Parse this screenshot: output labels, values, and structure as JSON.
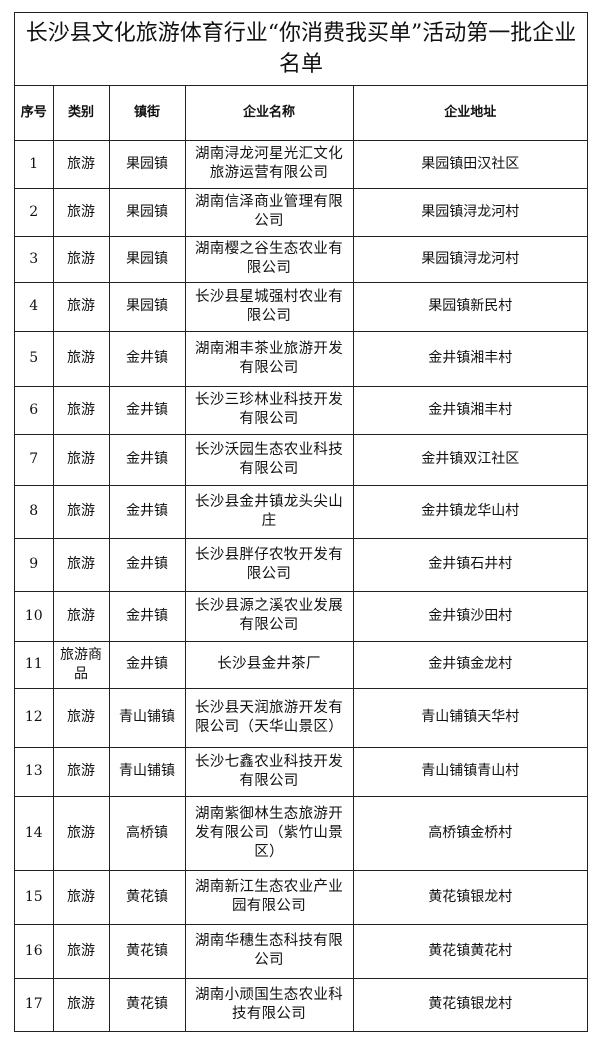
{
  "title": "长沙县文化旅游体育行业“你消费我买单”活动第一批企业名单",
  "columns": [
    "序号",
    "类别",
    "镇街",
    "企业名称",
    "企业地址"
  ],
  "rows": [
    {
      "no": "1",
      "category": "旅游",
      "town": "果园镇",
      "name": "湖南浔龙河星光汇文化旅游运营有限公司",
      "address": "果园镇田汉社区"
    },
    {
      "no": "2",
      "category": "旅游",
      "town": "果园镇",
      "name": "湖南信泽商业管理有限公司",
      "address": "果园镇浔龙河村"
    },
    {
      "no": "3",
      "category": "旅游",
      "town": "果园镇",
      "name": "湖南樱之谷生态农业有限公司",
      "address": "果园镇浔龙河村"
    },
    {
      "no": "4",
      "category": "旅游",
      "town": "果园镇",
      "name": "长沙县星城强村农业有限公司",
      "address": "果园镇新民村"
    },
    {
      "no": "5",
      "category": "旅游",
      "town": "金井镇",
      "name": "湖南湘丰茶业旅游开发有限公司",
      "address": "金井镇湘丰村"
    },
    {
      "no": "6",
      "category": "旅游",
      "town": "金井镇",
      "name": "长沙三珍林业科技开发有限公司",
      "address": "金井镇湘丰村"
    },
    {
      "no": "7",
      "category": "旅游",
      "town": "金井镇",
      "name": "长沙沃园生态农业科技有限公司",
      "address": "金井镇双江社区"
    },
    {
      "no": "8",
      "category": "旅游",
      "town": "金井镇",
      "name": "长沙县金井镇龙头尖山庄",
      "address": "金井镇龙华山村"
    },
    {
      "no": "9",
      "category": "旅游",
      "town": "金井镇",
      "name": "长沙县胖仔农牧开发有限公司",
      "address": "金井镇石井村"
    },
    {
      "no": "10",
      "category": "旅游",
      "town": "金井镇",
      "name": "长沙县源之溪农业发展有限公司",
      "address": "金井镇沙田村"
    },
    {
      "no": "11",
      "category": "旅游商品",
      "town": "金井镇",
      "name": "长沙县金井茶厂",
      "address": "金井镇金龙村"
    },
    {
      "no": "12",
      "category": "旅游",
      "town": "青山铺镇",
      "name": "长沙县天润旅游开发有限公司（天华山景区）",
      "address": "青山铺镇天华村"
    },
    {
      "no": "13",
      "category": "旅游",
      "town": "青山铺镇",
      "name": "长沙七鑫农业科技开发有限公司",
      "address": "青山铺镇青山村"
    },
    {
      "no": "14",
      "category": "旅游",
      "town": "高桥镇",
      "name": "湖南紫御林生态旅游开发有限公司（紫竹山景区）",
      "address": "高桥镇金桥村"
    },
    {
      "no": "15",
      "category": "旅游",
      "town": "黄花镇",
      "name": "湖南新江生态农业产业园有限公司",
      "address": "黄花镇银龙村"
    },
    {
      "no": "16",
      "category": "旅游",
      "town": "黄花镇",
      "name": "湖南华穗生态科技有限公司",
      "address": "黄花镇黄花村"
    },
    {
      "no": "17",
      "category": "旅游",
      "town": "黄花镇",
      "name": "湖南小顽国生态农业科技有限公司",
      "address": "黄花镇银龙村"
    }
  ]
}
